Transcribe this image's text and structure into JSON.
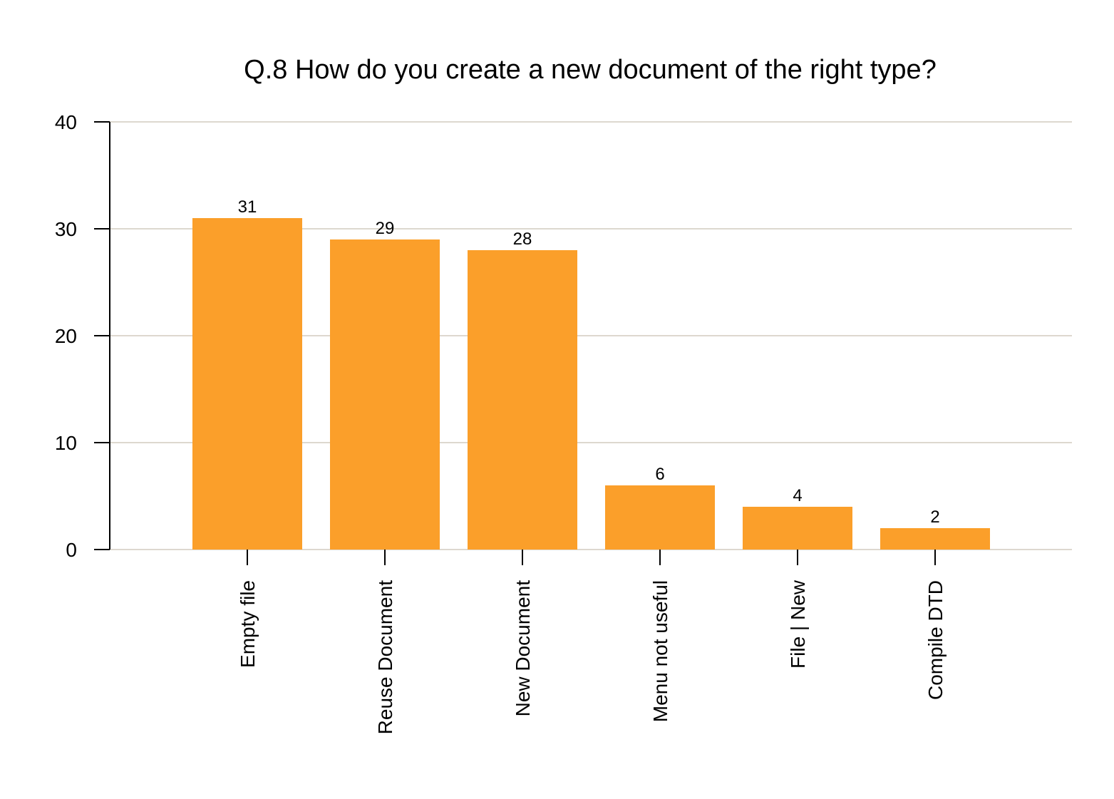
{
  "chart_data": {
    "type": "bar",
    "title": "Q.8 How do you create a new document of the right type?",
    "xlabel": "",
    "ylabel": "",
    "categories": [
      "Empty file",
      "Reuse Document",
      "New Document",
      "Menu not useful",
      "File | New",
      "Compile DTD"
    ],
    "values": [
      31,
      29,
      28,
      6,
      4,
      2
    ],
    "data_labels": [
      "31",
      "29",
      "28",
      "6",
      "4",
      "2"
    ],
    "ylim": [
      0,
      40
    ],
    "yticks": [
      0,
      10,
      20,
      30,
      40
    ],
    "ytick_labels": [
      "0",
      "10",
      "20",
      "30",
      "40"
    ],
    "grid": true,
    "legend": "none",
    "colors": {
      "bar": "#fb9f2a",
      "grid": "#ddd8cf",
      "axis": "#000000",
      "text": "#000000"
    }
  }
}
